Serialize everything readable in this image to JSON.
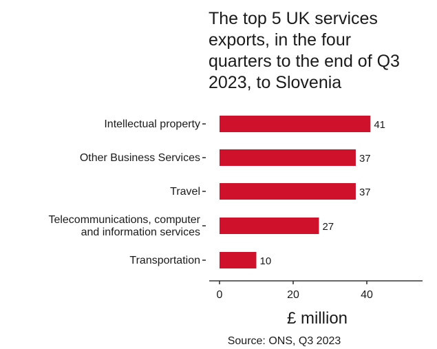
{
  "chart_data": {
    "type": "bar",
    "orientation": "horizontal",
    "title_lines": [
      "The top 5 UK services",
      "exports, in the four",
      "quarters to the end of Q3",
      "2023, to Slovenia"
    ],
    "categories": [
      [
        "Intellectual property"
      ],
      [
        "Other Business Services"
      ],
      [
        "Travel"
      ],
      [
        "Telecommunications, computer",
        "and information services"
      ],
      [
        "Transportation"
      ]
    ],
    "values": [
      41,
      37,
      37,
      27,
      10
    ],
    "value_labels": [
      "41",
      "37",
      "37",
      "27",
      "10"
    ],
    "xlabel": "£ million",
    "ylabel": "",
    "xlim": [
      0,
      55
    ],
    "x_ticks": [
      0,
      20,
      40
    ],
    "x_tick_labels": [
      "0",
      "20",
      "40"
    ],
    "grid": false,
    "bar_color": "#d0112b",
    "source": "Source: ONS, Q3 2023"
  }
}
